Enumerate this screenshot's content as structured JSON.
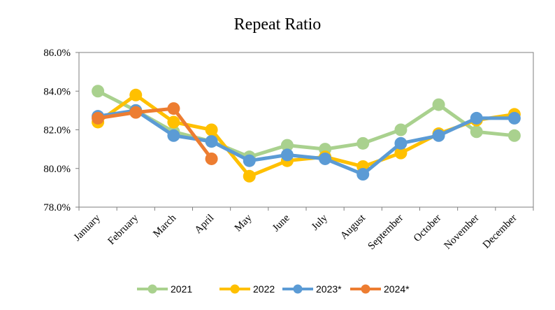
{
  "chart_data": {
    "type": "line",
    "title": "Repeat Ratio",
    "xlabel": "",
    "ylabel": "",
    "categories": [
      "January",
      "February",
      "March",
      "April",
      "May",
      "June",
      "July",
      "August",
      "September",
      "October",
      "November",
      "December"
    ],
    "ylim": [
      78.0,
      86.0
    ],
    "yticks": [
      78.0,
      80.0,
      82.0,
      84.0,
      86.0
    ],
    "ytick_labels": [
      "78.0%",
      "80.0%",
      "82.0%",
      "84.0%",
      "86.0%"
    ],
    "grid": false,
    "legend_position": "bottom",
    "series": [
      {
        "name": "2021",
        "color": "#a9d18e",
        "values": [
          84.0,
          83.0,
          81.9,
          81.4,
          80.6,
          81.2,
          81.0,
          81.3,
          82.0,
          83.3,
          81.9,
          81.7
        ]
      },
      {
        "name": "2022",
        "color": "#ffc000",
        "values": [
          82.4,
          83.8,
          82.4,
          82.0,
          79.6,
          80.4,
          80.6,
          80.1,
          80.8,
          81.8,
          82.5,
          82.8
        ]
      },
      {
        "name": "2023*",
        "color": "#5b9bd5",
        "values": [
          82.7,
          83.0,
          81.7,
          81.4,
          80.4,
          80.7,
          80.5,
          79.7,
          81.3,
          81.7,
          82.6,
          82.6
        ]
      },
      {
        "name": "2024*",
        "color": "#ed7d31",
        "values": [
          82.6,
          82.9,
          83.1,
          80.5,
          null,
          null,
          null,
          null,
          null,
          null,
          null,
          null
        ]
      }
    ]
  }
}
